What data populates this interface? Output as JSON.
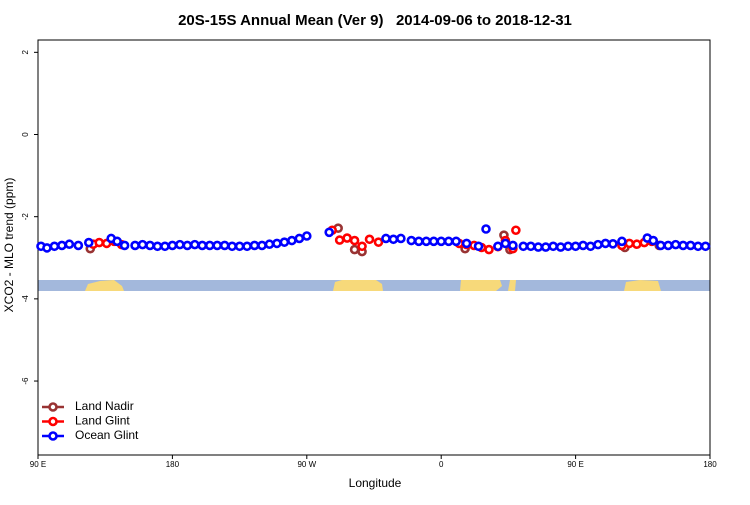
{
  "chart_data": {
    "type": "scatter",
    "title": "20S-15S Annual Mean (Ver 9)   2014-09-06 to 2018-12-31",
    "x_label": "Longitude",
    "y_label": "XCO2 - MLO trend (ppm)",
    "xlim": [
      90,
      540
    ],
    "ylim": [
      -7.8,
      2.3
    ],
    "xticks": [
      {
        "value": 90,
        "label": "90 E"
      },
      {
        "value": 180,
        "label": "180"
      },
      {
        "value": 270,
        "label": "90 W"
      },
      {
        "value": 360,
        "label": "0"
      },
      {
        "value": 450,
        "label": "90 E"
      },
      {
        "value": 540,
        "label": "180"
      }
    ],
    "yticks": [
      -6,
      -4,
      -2,
      0,
      2
    ],
    "legend": "bottom-left",
    "series": [
      {
        "name": "Land Nadir",
        "color": "#993333",
        "x": [
          125,
          291,
          302,
          307,
          376,
          402,
          406,
          483,
          506
        ],
        "values": [
          -2.78,
          -2.28,
          -2.8,
          -2.85,
          -2.78,
          -2.45,
          -2.8,
          -2.75,
          -2.7
        ]
      },
      {
        "name": "Land Glint",
        "color": "#ff0000",
        "x": [
          127,
          131,
          136,
          141,
          146,
          287,
          292,
          297,
          302,
          307,
          312,
          318,
          372,
          377,
          382,
          387,
          392,
          398,
          403,
          408,
          410,
          481,
          486,
          491,
          496,
          501
        ],
        "values": [
          -2.67,
          -2.63,
          -2.65,
          -2.6,
          -2.68,
          -2.33,
          -2.57,
          -2.52,
          -2.58,
          -2.72,
          -2.55,
          -2.62,
          -2.65,
          -2.68,
          -2.7,
          -2.75,
          -2.8,
          -2.73,
          -2.58,
          -2.78,
          -2.33,
          -2.7,
          -2.65,
          -2.67,
          -2.63,
          -2.6
        ]
      },
      {
        "name": "Ocean Glint",
        "color": "#0000ff",
        "x": [
          92,
          96,
          101,
          106,
          111,
          117,
          124,
          139,
          143,
          148,
          155,
          160,
          165,
          170,
          175,
          180,
          185,
          190,
          195,
          200,
          205,
          210,
          215,
          220,
          225,
          230,
          235,
          240,
          245,
          250,
          255,
          260,
          265,
          270,
          285,
          323,
          328,
          333,
          340,
          345,
          350,
          355,
          360,
          365,
          370,
          377,
          385,
          390,
          398,
          403,
          408,
          415,
          420,
          425,
          430,
          435,
          440,
          445,
          450,
          455,
          460,
          465,
          470,
          475,
          481,
          498,
          502,
          507,
          512,
          517,
          522,
          527,
          532,
          537
        ],
        "values": [
          -2.72,
          -2.76,
          -2.72,
          -2.7,
          -2.67,
          -2.7,
          -2.63,
          -2.53,
          -2.6,
          -2.7,
          -2.7,
          -2.68,
          -2.7,
          -2.72,
          -2.72,
          -2.7,
          -2.68,
          -2.7,
          -2.68,
          -2.7,
          -2.7,
          -2.7,
          -2.7,
          -2.72,
          -2.72,
          -2.72,
          -2.7,
          -2.7,
          -2.67,
          -2.65,
          -2.62,
          -2.58,
          -2.53,
          -2.47,
          -2.38,
          -2.53,
          -2.55,
          -2.53,
          -2.58,
          -2.6,
          -2.6,
          -2.6,
          -2.6,
          -2.6,
          -2.6,
          -2.65,
          -2.72,
          -2.3,
          -2.72,
          -2.65,
          -2.7,
          -2.72,
          -2.72,
          -2.74,
          -2.74,
          -2.72,
          -2.74,
          -2.72,
          -2.72,
          -2.7,
          -2.72,
          -2.68,
          -2.65,
          -2.66,
          -2.6,
          -2.52,
          -2.58,
          -2.7,
          -2.7,
          -2.68,
          -2.7,
          -2.7,
          -2.72,
          -2.72
        ]
      }
    ]
  }
}
